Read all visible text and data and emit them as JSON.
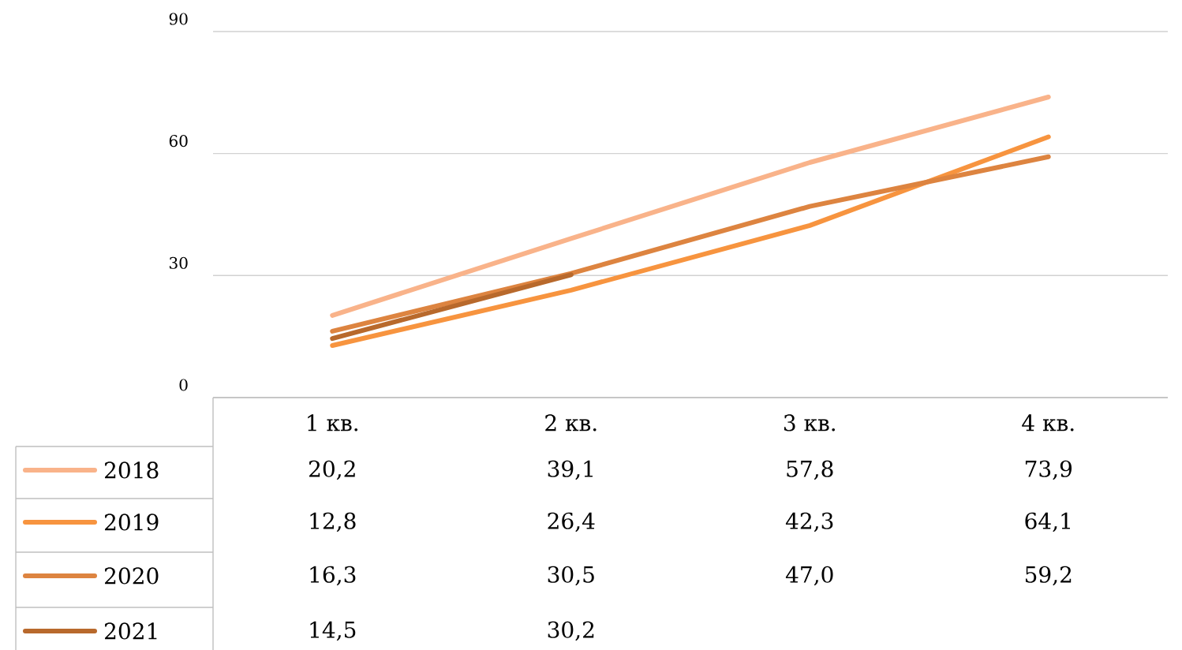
{
  "chart_data": {
    "type": "line",
    "categories": [
      "1 кв.",
      "2 кв.",
      "3 кв.",
      "4 кв."
    ],
    "series": [
      {
        "name": "2018",
        "color": "#f9b38a",
        "values": [
          20.2,
          39.1,
          57.8,
          73.9
        ],
        "value_labels": [
          "20,2",
          "39,1",
          "57,8",
          "73,9"
        ]
      },
      {
        "name": "2019",
        "color": "#f7943f",
        "values": [
          12.8,
          26.4,
          42.3,
          64.1
        ],
        "value_labels": [
          "12,8",
          "26,4",
          "42,3",
          "64,1"
        ]
      },
      {
        "name": "2020",
        "color": "#dd8440",
        "values": [
          16.3,
          30.5,
          47.0,
          59.2
        ],
        "value_labels": [
          "16,3",
          "30,5",
          "47,0",
          "59,2"
        ]
      },
      {
        "name": "2021",
        "color": "#b8692c",
        "values": [
          14.5,
          30.2,
          null,
          null
        ],
        "value_labels": [
          "14,5",
          "30,2",
          null,
          null
        ]
      }
    ],
    "ylim": [
      0,
      90
    ],
    "yticks": [
      0,
      30,
      60,
      90
    ],
    "grid": "y",
    "legend": "bottom",
    "line_style": "solid",
    "marker": "none"
  }
}
